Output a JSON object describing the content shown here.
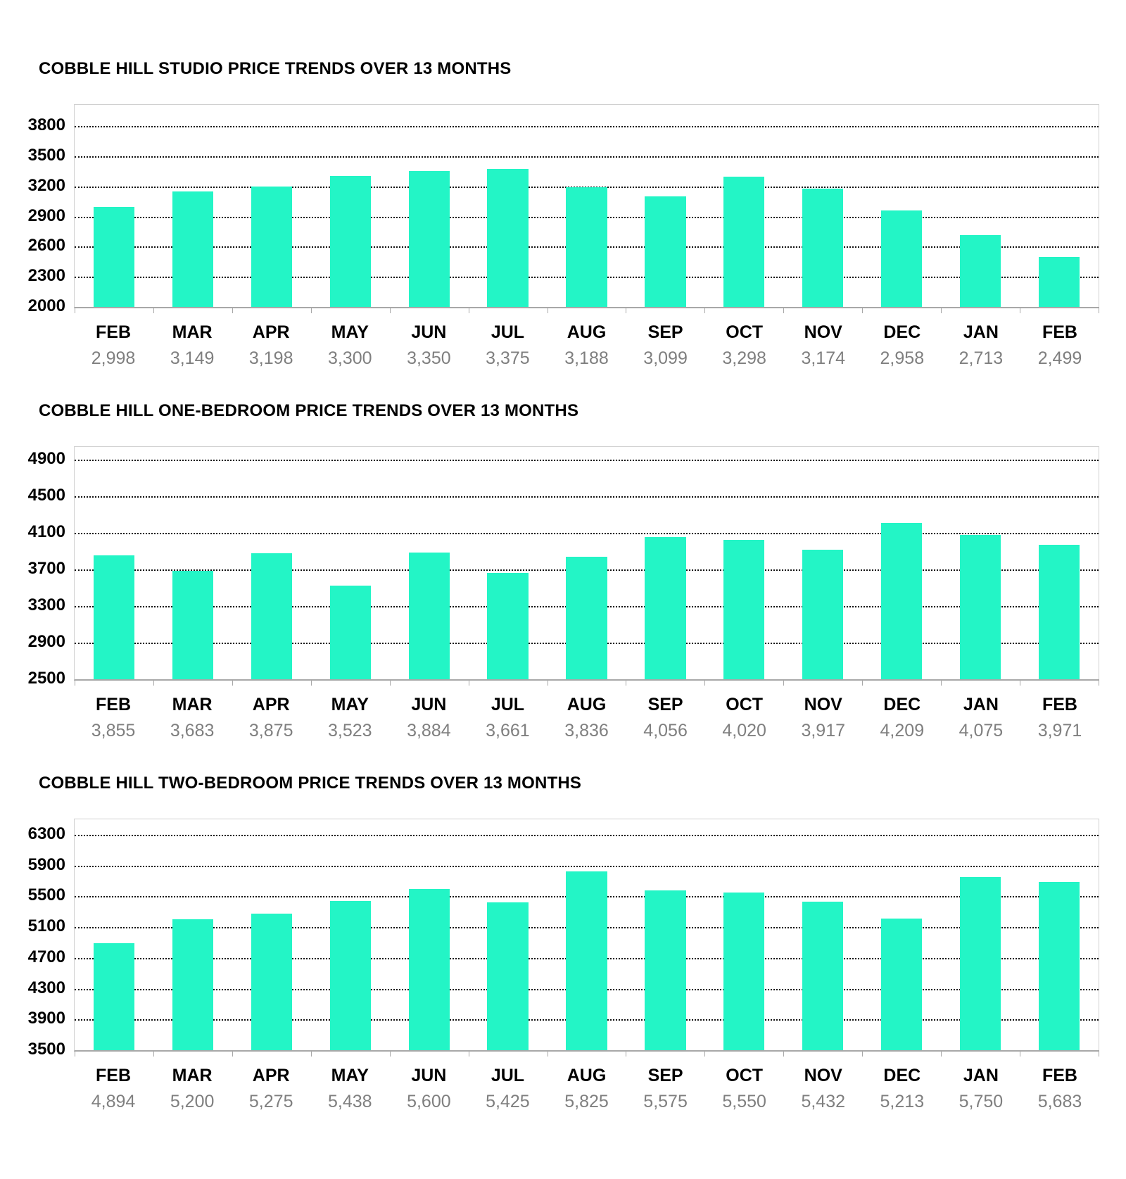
{
  "page": {
    "background": "#ffffff"
  },
  "chart_data": [
    {
      "type": "bar",
      "title": "COBBLE HILL STUDIO PRICE TRENDS OVER 13 MONTHS",
      "categories": [
        "FEB",
        "MAR",
        "APR",
        "MAY",
        "JUN",
        "JUL",
        "AUG",
        "SEP",
        "OCT",
        "NOV",
        "DEC",
        "JAN",
        "FEB"
      ],
      "values": [
        2998,
        3149,
        3198,
        3300,
        3350,
        3375,
        3188,
        3099,
        3298,
        3174,
        2958,
        2713,
        2499
      ],
      "value_labels": [
        "2,998",
        "3,149",
        "3,198",
        "3,300",
        "3,350",
        "3,375",
        "3,188",
        "3,099",
        "3,298",
        "3,174",
        "2,958",
        "2,713",
        "2,499"
      ],
      "yticks": [
        2000,
        2300,
        2600,
        2900,
        3200,
        3500,
        3800
      ],
      "ylim": [
        2000,
        3800
      ],
      "xlabel": "",
      "ylabel": "",
      "grid": true,
      "legend": "none",
      "bar_color": "#23F5C6"
    },
    {
      "type": "bar",
      "title": "COBBLE HILL ONE-BEDROOM PRICE TRENDS OVER 13 MONTHS",
      "categories": [
        "FEB",
        "MAR",
        "APR",
        "MAY",
        "JUN",
        "JUL",
        "AUG",
        "SEP",
        "OCT",
        "NOV",
        "DEC",
        "JAN",
        "FEB"
      ],
      "values": [
        3855,
        3683,
        3875,
        3523,
        3884,
        3661,
        3836,
        4056,
        4020,
        3917,
        4209,
        4075,
        3971
      ],
      "value_labels": [
        "3,855",
        "3,683",
        "3,875",
        "3,523",
        "3,884",
        "3,661",
        "3,836",
        "4,056",
        "4,020",
        "3,917",
        "4,209",
        "4,075",
        "3,971"
      ],
      "yticks": [
        2500,
        2900,
        3300,
        3700,
        4100,
        4500,
        4900
      ],
      "ylim": [
        2500,
        4900
      ],
      "xlabel": "",
      "ylabel": "",
      "grid": true,
      "legend": "none",
      "bar_color": "#23F5C6"
    },
    {
      "type": "bar",
      "title": "COBBLE HILL TWO-BEDROOM PRICE TRENDS OVER 13 MONTHS",
      "categories": [
        "FEB",
        "MAR",
        "APR",
        "MAY",
        "JUN",
        "JUL",
        "AUG",
        "SEP",
        "OCT",
        "NOV",
        "DEC",
        "JAN",
        "FEB"
      ],
      "values": [
        4894,
        5200,
        5275,
        5438,
        5600,
        5425,
        5825,
        5575,
        5550,
        5432,
        5213,
        5750,
        5683
      ],
      "value_labels": [
        "4,894",
        "5,200",
        "5,275",
        "5,438",
        "5,600",
        "5,425",
        "5,825",
        "5,575",
        "5,550",
        "5,432",
        "5,213",
        "5,750",
        "5,683"
      ],
      "yticks": [
        3500,
        3900,
        4300,
        4700,
        5100,
        5500,
        5900,
        6300
      ],
      "ylim": [
        3500,
        6300
      ],
      "xlabel": "",
      "ylabel": "",
      "grid": true,
      "legend": "none",
      "bar_color": "#23F5C6"
    }
  ]
}
